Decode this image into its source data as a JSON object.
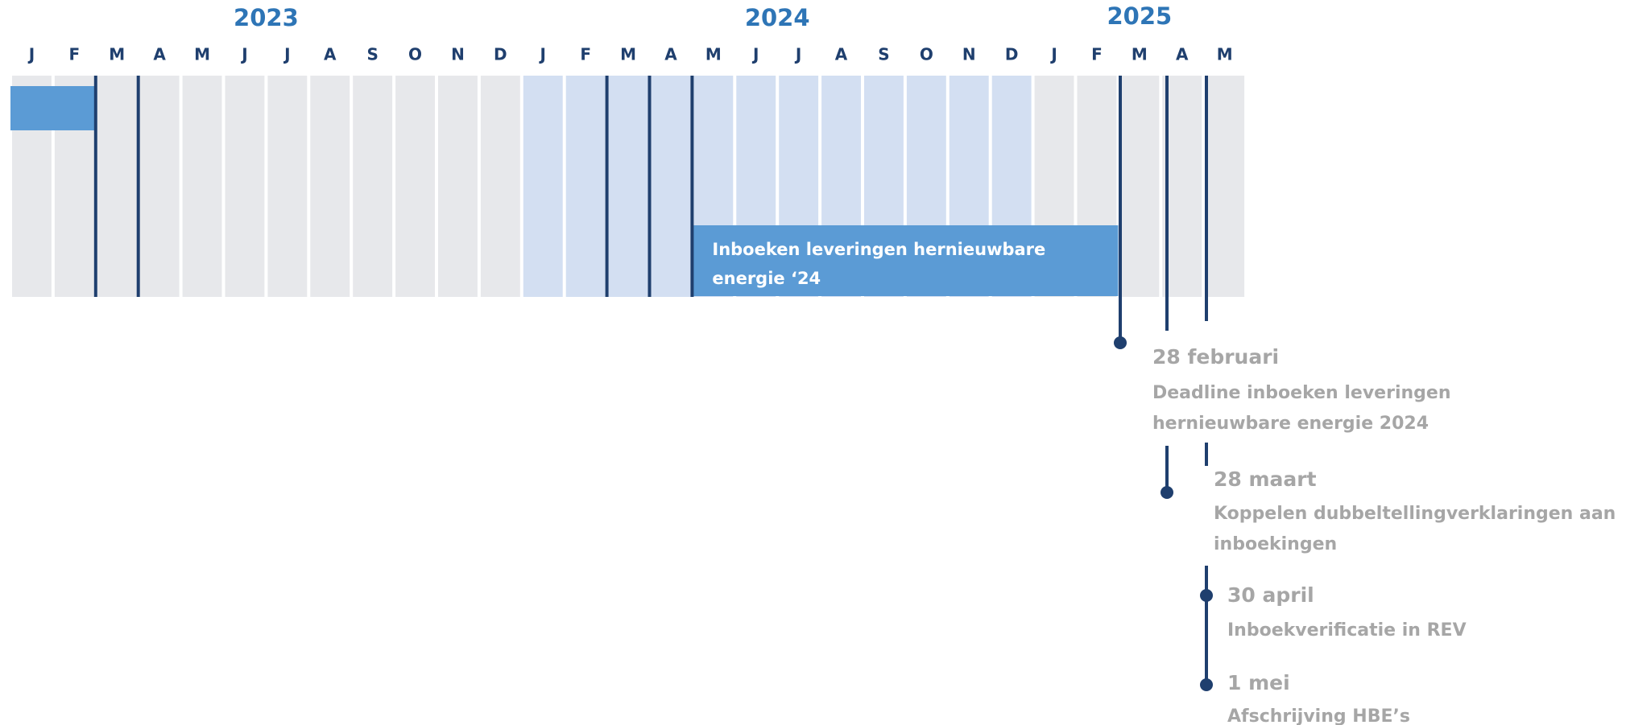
{
  "years": [
    "2023",
    "2024",
    "2025"
  ],
  "months": [
    "J",
    "F",
    "M",
    "A",
    "M",
    "J",
    "J",
    "A",
    "S",
    "O",
    "N",
    "D",
    "J",
    "F",
    "M",
    "A",
    "M",
    "J",
    "J",
    "A",
    "S",
    "O",
    "N",
    "D",
    "J",
    "F",
    "M",
    "A",
    "M"
  ],
  "bar": {
    "label": [
      "Inboeken leveringen hernieuwbare",
      "energie ‘24"
    ]
  },
  "milestones": [
    {
      "date": "28 februari",
      "description": [
        "Deadline inboeken leveringen",
        "hernieuwbare energie 2024"
      ]
    },
    {
      "date": "28 maart",
      "description": [
        "Koppelen dubbeltellingverklaringen aan",
        "inboekingen"
      ]
    },
    {
      "date": "30 april",
      "description": [
        "Inboekverificatie in REV"
      ]
    },
    {
      "date": "1 mei",
      "description": [
        "Afschrijving HBE’s"
      ]
    }
  ]
}
